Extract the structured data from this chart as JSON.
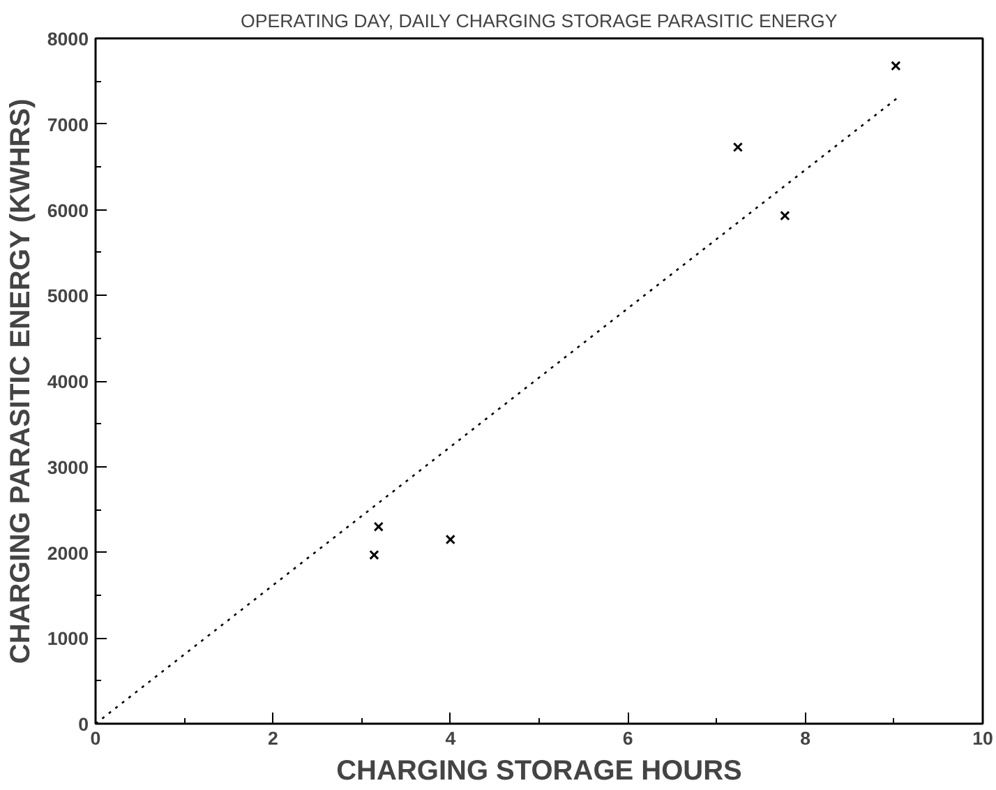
{
  "chart_data": {
    "type": "scatter",
    "title": "OPERATING DAY, DAILY CHARGING STORAGE PARASITIC ENERGY",
    "xlabel": "CHARGING STORAGE HOURS",
    "ylabel": "CHARGING PARASITIC ENERGY (KWHRS)",
    "xlim": [
      0,
      10
    ],
    "ylim": [
      0,
      8000
    ],
    "xticks": [
      0,
      2,
      4,
      6,
      8,
      10
    ],
    "yticks": [
      0,
      1000,
      2000,
      3000,
      4000,
      5000,
      6000,
      7000,
      8000
    ],
    "grid": false,
    "series": [
      {
        "marker": "cross",
        "color": "#000000",
        "x": [
          3.14,
          3.19,
          4.0,
          7.24,
          7.77,
          9.02
        ],
        "values": [
          1970,
          2300,
          2150,
          6730,
          5930,
          7680
        ]
      },
      {
        "type": "line",
        "marker": "none",
        "line_style": "dotted",
        "color": "#000000",
        "x": [
          0,
          9.07
        ],
        "values": [
          0,
          7330
        ]
      }
    ]
  }
}
